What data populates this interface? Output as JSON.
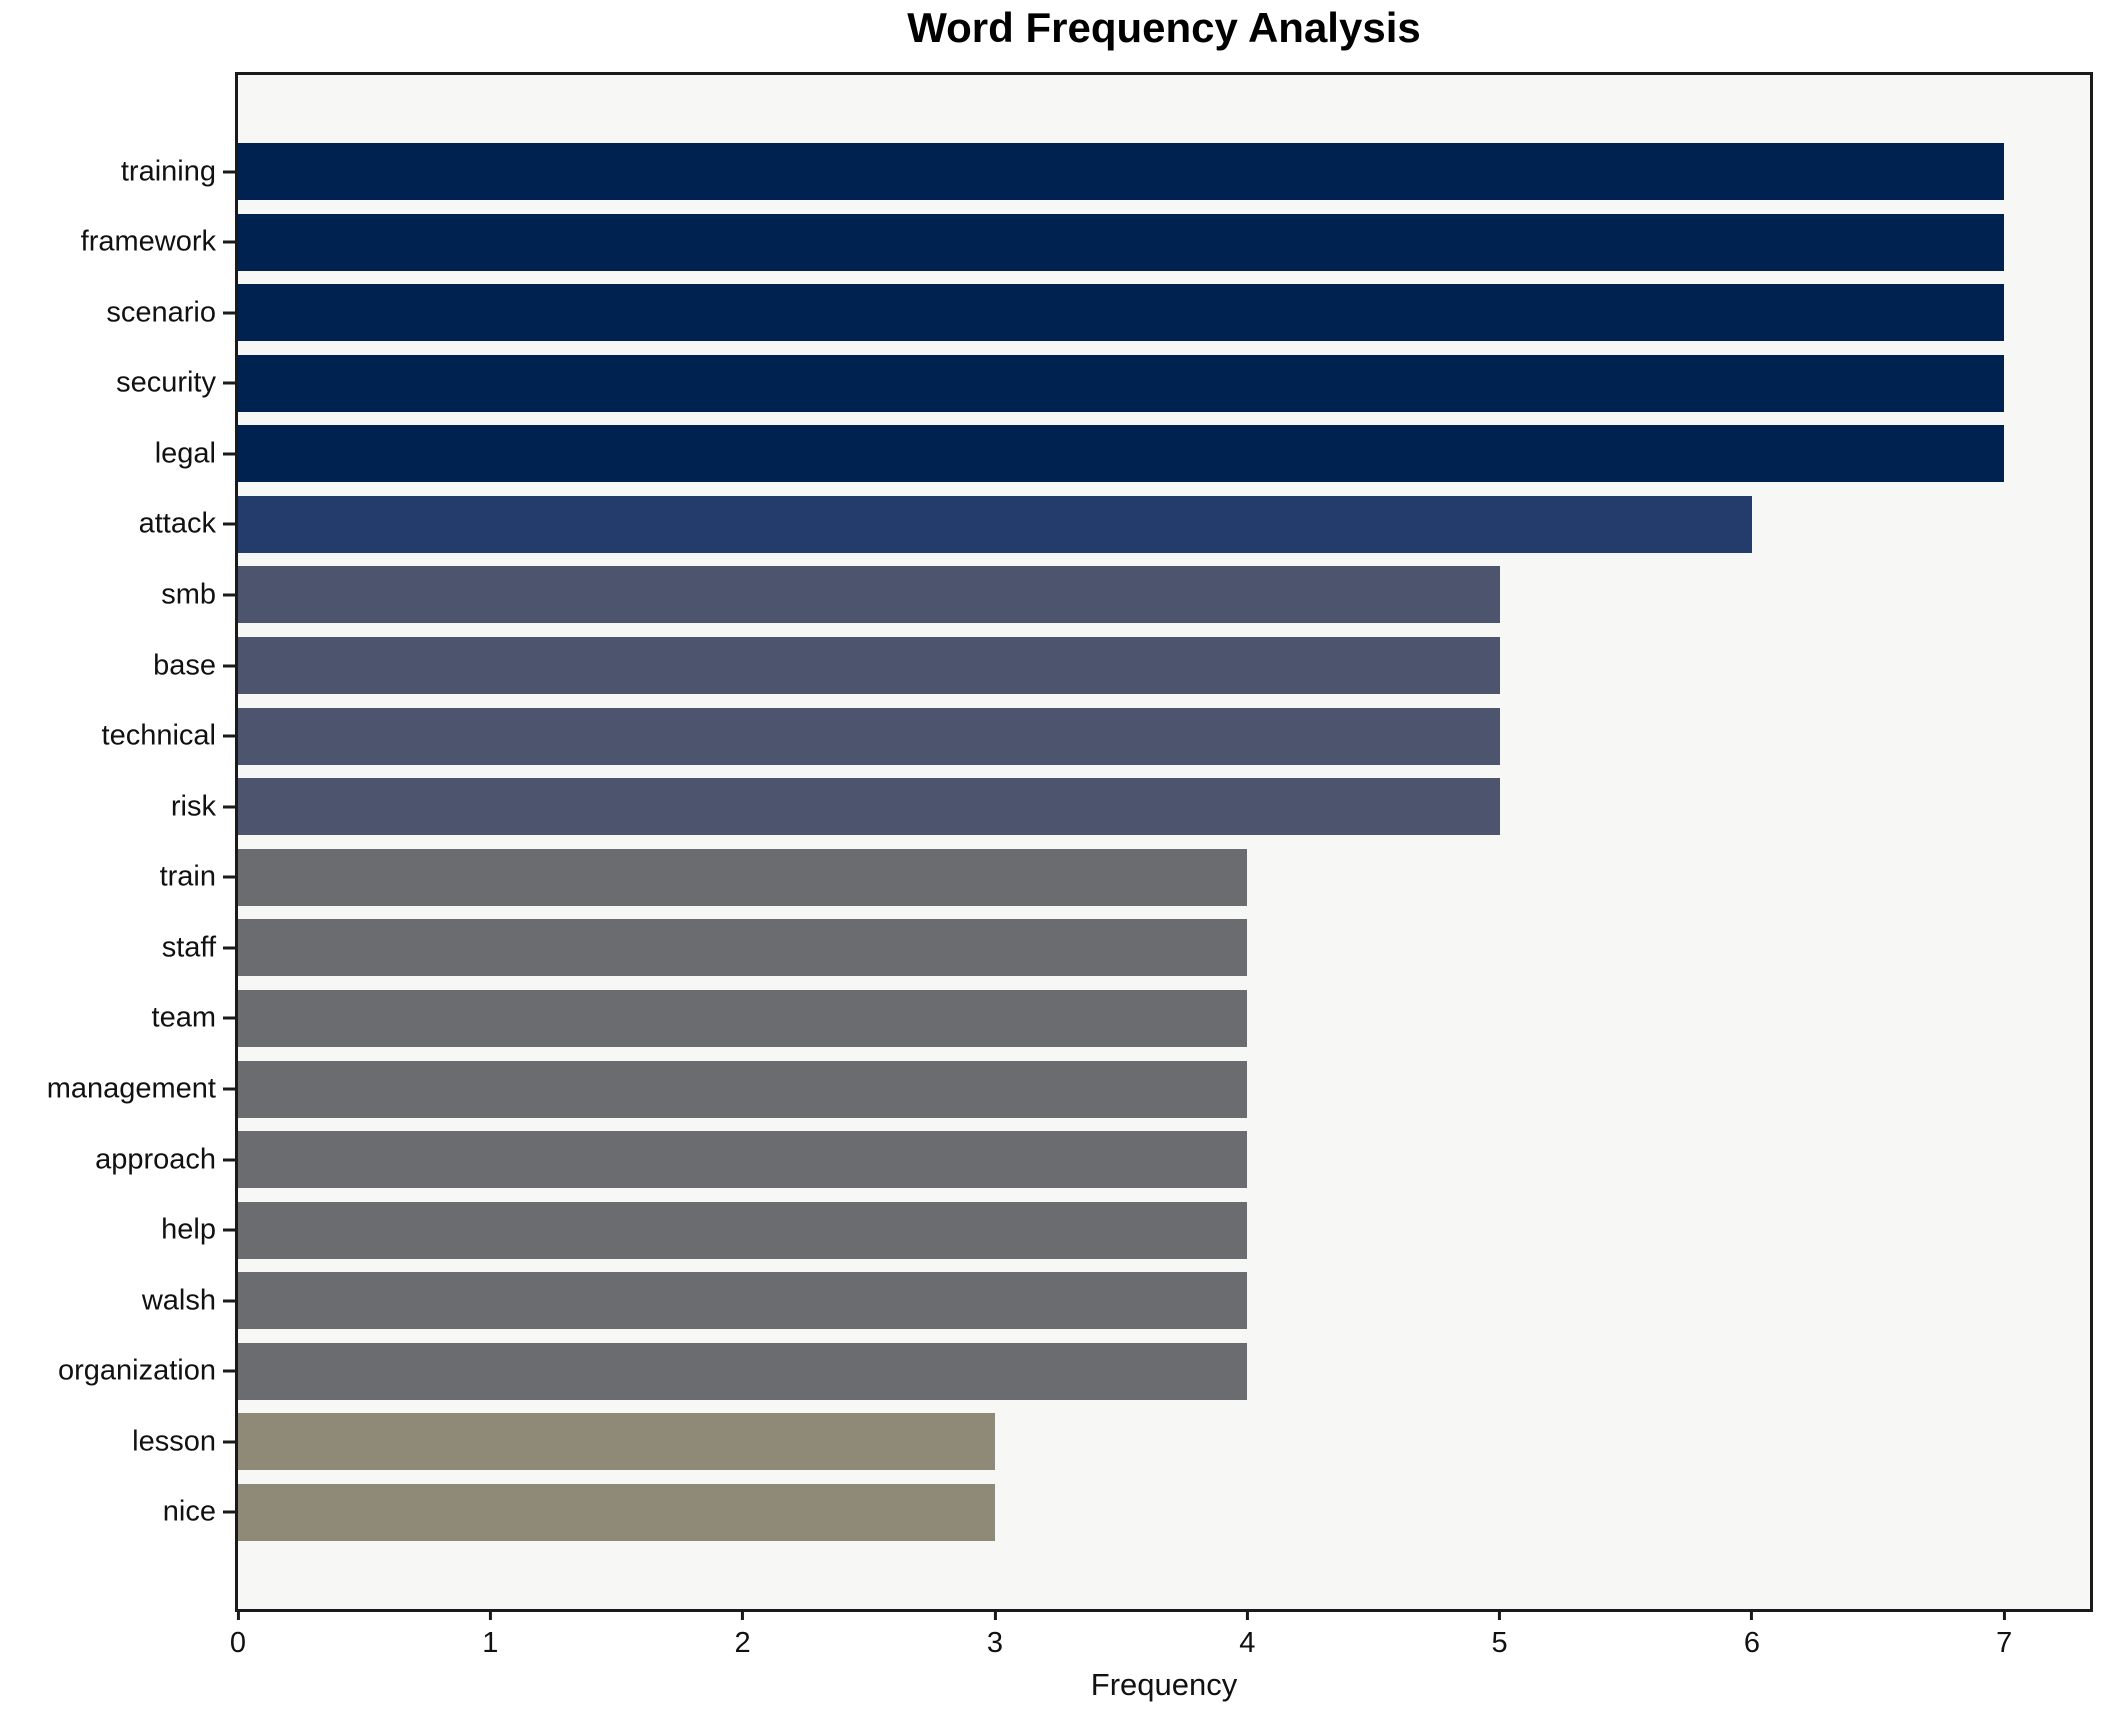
{
  "chart_data": {
    "type": "bar",
    "orientation": "horizontal",
    "title": "Word Frequency Analysis",
    "xlabel": "Frequency",
    "ylabel": "",
    "categories": [
      "training",
      "framework",
      "scenario",
      "security",
      "legal",
      "attack",
      "smb",
      "base",
      "technical",
      "risk",
      "train",
      "staff",
      "team",
      "management",
      "approach",
      "help",
      "walsh",
      "organization",
      "lesson",
      "nice"
    ],
    "values": [
      7,
      7,
      7,
      7,
      7,
      6,
      5,
      5,
      5,
      5,
      4,
      4,
      4,
      4,
      4,
      4,
      4,
      4,
      3,
      3
    ],
    "xticks": [
      "0",
      "1",
      "2",
      "3",
      "4",
      "5",
      "6",
      "7"
    ],
    "xlim": [
      0,
      7.34
    ],
    "grid": false,
    "legend": "none",
    "colors_by_value": {
      "7": "#002250",
      "6": "#233c6b",
      "5": "#4d556e",
      "4": "#6b6c70",
      "3": "#8f8a78"
    },
    "plot_background": "#f7f7f5",
    "figure_background": "#ffffff",
    "axis_color": "#1a1a1a",
    "text_color": "#111111"
  }
}
